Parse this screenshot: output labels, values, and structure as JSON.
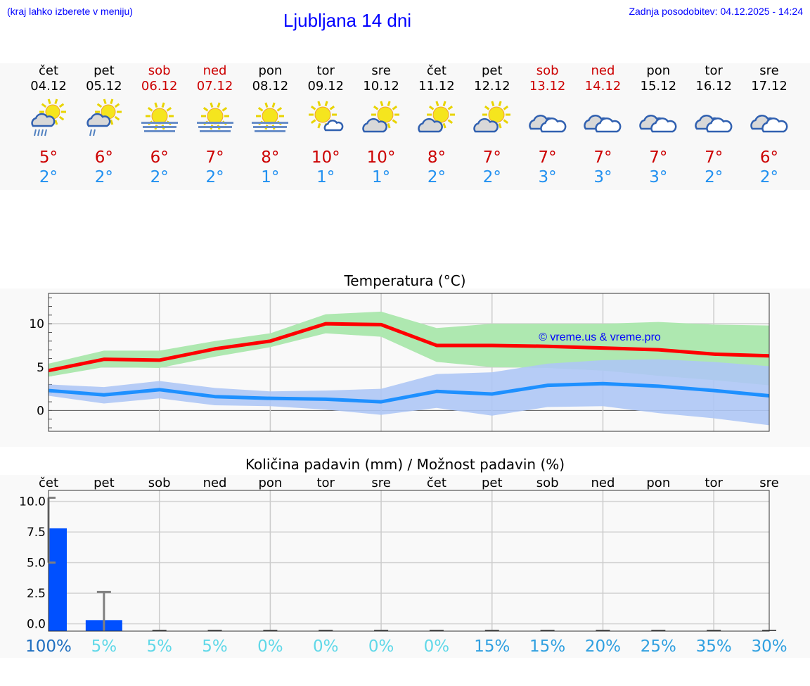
{
  "header": {
    "hint": "(kraj lahko izberete v meniju)",
    "title": "Ljubljana 14 dni",
    "updated": "Zadnja posodobitev: 04.12.2025 - 14:24"
  },
  "colors": {
    "weekend": "#cc0000",
    "max": "#ff0000",
    "min": "#1e90ff",
    "max_band": "#aee8b0",
    "min_band": "#aec6f5",
    "bar": "#0050ff"
  },
  "days": [
    {
      "name": "čet",
      "date": "04.12",
      "icon": "rain-partly-sunny",
      "hi": "5°",
      "lo": "2°",
      "weekend": false
    },
    {
      "name": "pet",
      "date": "05.12",
      "icon": "light-rain-partly-sunny",
      "hi": "6°",
      "lo": "2°",
      "weekend": false
    },
    {
      "name": "sob",
      "date": "06.12",
      "icon": "fog-sun",
      "hi": "6°",
      "lo": "2°",
      "weekend": true
    },
    {
      "name": "ned",
      "date": "07.12",
      "icon": "fog-sun",
      "hi": "7°",
      "lo": "2°",
      "weekend": true
    },
    {
      "name": "pon",
      "date": "08.12",
      "icon": "fog-sun",
      "hi": "8°",
      "lo": "1°",
      "weekend": false
    },
    {
      "name": "tor",
      "date": "09.12",
      "icon": "sunny-small-cloud",
      "hi": "10°",
      "lo": "1°",
      "weekend": false
    },
    {
      "name": "sre",
      "date": "10.12",
      "icon": "partly-cloudy",
      "hi": "10°",
      "lo": "1°",
      "weekend": false
    },
    {
      "name": "čet",
      "date": "11.12",
      "icon": "partly-cloudy",
      "hi": "8°",
      "lo": "2°",
      "weekend": false
    },
    {
      "name": "pet",
      "date": "12.12",
      "icon": "partly-cloudy",
      "hi": "7°",
      "lo": "2°",
      "weekend": false
    },
    {
      "name": "sob",
      "date": "13.12",
      "icon": "cloudy",
      "hi": "7°",
      "lo": "3°",
      "weekend": true
    },
    {
      "name": "ned",
      "date": "14.12",
      "icon": "cloudy",
      "hi": "7°",
      "lo": "3°",
      "weekend": true
    },
    {
      "name": "pon",
      "date": "15.12",
      "icon": "cloudy",
      "hi": "7°",
      "lo": "3°",
      "weekend": false
    },
    {
      "name": "tor",
      "date": "16.12",
      "icon": "cloudy",
      "hi": "7°",
      "lo": "2°",
      "weekend": false
    },
    {
      "name": "sre",
      "date": "17.12",
      "icon": "cloudy",
      "hi": "6°",
      "lo": "2°",
      "weekend": false
    }
  ],
  "chart_data": [
    {
      "type": "line",
      "title": "Temperatura (°C)",
      "ylim": [
        -2.4,
        13.5
      ],
      "yticks": [
        0,
        5,
        10
      ],
      "grid": true,
      "watermark": "© vreme.us & vreme.pro",
      "x": [
        "čet",
        "pet",
        "sob",
        "ned",
        "pon",
        "tor",
        "sre",
        "čet",
        "pet",
        "sob",
        "ned",
        "pon",
        "tor",
        "sre"
      ],
      "series": [
        {
          "role": "max",
          "values": [
            4.6,
            5.9,
            5.8,
            7.1,
            8.0,
            10.0,
            9.9,
            7.5,
            7.5,
            7.4,
            7.2,
            7.0,
            6.5,
            6.3
          ],
          "upper": [
            5.4,
            6.9,
            6.9,
            8.0,
            8.9,
            11.1,
            11.4,
            9.5,
            10.0,
            10.0,
            10.0,
            10.2,
            9.9,
            9.8
          ],
          "lower": [
            3.9,
            5.0,
            4.9,
            6.2,
            7.3,
            8.9,
            8.5,
            5.6,
            5.0,
            4.9,
            4.6,
            4.0,
            3.5,
            2.9
          ]
        },
        {
          "role": "min",
          "values": [
            2.3,
            1.8,
            2.4,
            1.6,
            1.4,
            1.3,
            1.0,
            2.2,
            1.9,
            2.9,
            3.1,
            2.8,
            2.3,
            1.7
          ],
          "upper": [
            3.0,
            2.7,
            3.4,
            2.6,
            2.2,
            2.3,
            2.5,
            4.2,
            4.4,
            5.4,
            5.8,
            5.9,
            5.6,
            5.1
          ],
          "lower": [
            1.7,
            0.8,
            1.4,
            0.6,
            0.5,
            0.1,
            -0.5,
            0.3,
            -0.6,
            0.4,
            0.5,
            -0.3,
            -0.9,
            -1.7
          ]
        }
      ]
    },
    {
      "type": "bar",
      "title": "Količina padavin (mm) / Možnost padavin (%)",
      "ylim": [
        -0.6,
        10.9
      ],
      "yticks": [
        "0.0",
        "2.5",
        "5.0",
        "7.5",
        "10.0"
      ],
      "grid": true,
      "categories": [
        "čet",
        "pet",
        "sob",
        "ned",
        "pon",
        "tor",
        "sre",
        "čet",
        "pet",
        "sob",
        "ned",
        "pon",
        "tor",
        "sre"
      ],
      "values": [
        7.8,
        0.3,
        0,
        0,
        0,
        0,
        0,
        0,
        0,
        0,
        0,
        0,
        0,
        0
      ],
      "error_low": [
        5.0,
        0,
        0,
        0,
        0,
        0,
        0,
        0,
        0,
        0,
        0,
        0,
        0,
        0
      ],
      "error_high": [
        10.3,
        2.6,
        0,
        0,
        0,
        0,
        0,
        0,
        0,
        0,
        0,
        0,
        0,
        0
      ],
      "probability": [
        "100%",
        "5%",
        "5%",
        "5%",
        "0%",
        "0%",
        "0%",
        "0%",
        "15%",
        "15%",
        "20%",
        "25%",
        "35%",
        "30%"
      ]
    }
  ]
}
